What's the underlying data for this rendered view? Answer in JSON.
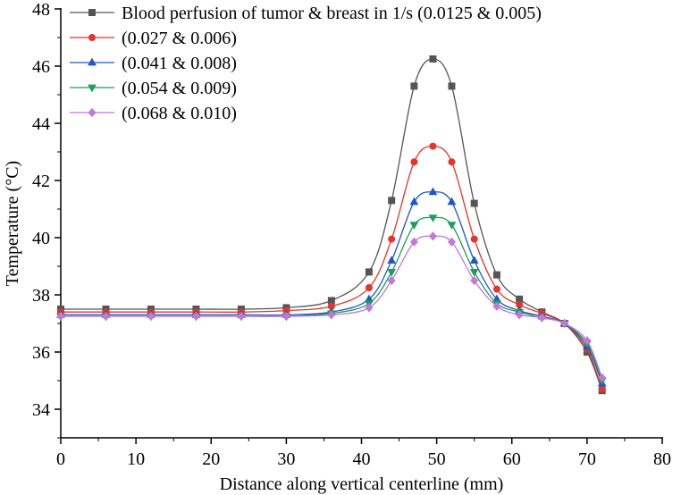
{
  "chart_data": {
    "type": "line",
    "title": "",
    "xlabel": "Distance along vertical centerline (mm)",
    "ylabel": "Temperature (°C)",
    "xlim": [
      0,
      80
    ],
    "ylim": [
      33,
      48
    ],
    "xticks": [
      0,
      10,
      20,
      30,
      40,
      50,
      60,
      70,
      80
    ],
    "yticks": [
      34,
      36,
      38,
      40,
      42,
      44,
      46,
      48
    ],
    "grid": false,
    "legend_position": "top-left",
    "x": [
      0,
      6,
      12,
      18,
      24,
      30,
      36,
      41,
      44,
      47,
      49.5,
      52,
      55,
      58,
      61,
      64,
      67,
      70,
      72
    ],
    "series": [
      {
        "name": "Blood perfusion of tumor & breast in 1/s (0.0125 & 0.005)",
        "color": "#555555",
        "marker": "square",
        "values": [
          37.5,
          37.5,
          37.5,
          37.5,
          37.5,
          37.55,
          37.8,
          38.8,
          41.3,
          45.3,
          46.25,
          45.3,
          41.2,
          38.7,
          37.85,
          37.4,
          37.0,
          36.0,
          34.65
        ]
      },
      {
        "name": "(0.027 & 0.006)",
        "color": "#e8332a",
        "marker": "circle",
        "values": [
          37.4,
          37.4,
          37.4,
          37.4,
          37.4,
          37.45,
          37.6,
          38.25,
          39.95,
          42.65,
          43.2,
          42.65,
          39.95,
          38.2,
          37.65,
          37.35,
          37.0,
          36.1,
          34.7
        ]
      },
      {
        "name": "(0.041 & 0.008)",
        "color": "#1f57c8",
        "marker": "triangle-up",
        "values": [
          37.3,
          37.3,
          37.3,
          37.3,
          37.3,
          37.3,
          37.4,
          37.85,
          39.2,
          41.25,
          41.6,
          41.25,
          39.2,
          37.85,
          37.45,
          37.25,
          37.0,
          36.2,
          34.9
        ]
      },
      {
        "name": "(0.054 & 0.009)",
        "color": "#1e9e5a",
        "marker": "triangle-down",
        "values": [
          37.25,
          37.25,
          37.25,
          37.25,
          37.25,
          37.25,
          37.35,
          37.7,
          38.8,
          40.45,
          40.7,
          40.45,
          38.8,
          37.7,
          37.4,
          37.2,
          37.0,
          36.3,
          35.0
        ]
      },
      {
        "name": "(0.068 & 0.010)",
        "color": "#c278d8",
        "marker": "diamond",
        "values": [
          37.25,
          37.25,
          37.25,
          37.25,
          37.25,
          37.25,
          37.3,
          37.55,
          38.5,
          39.85,
          40.05,
          39.85,
          38.5,
          37.6,
          37.3,
          37.2,
          37.0,
          36.4,
          35.1
        ]
      }
    ]
  }
}
